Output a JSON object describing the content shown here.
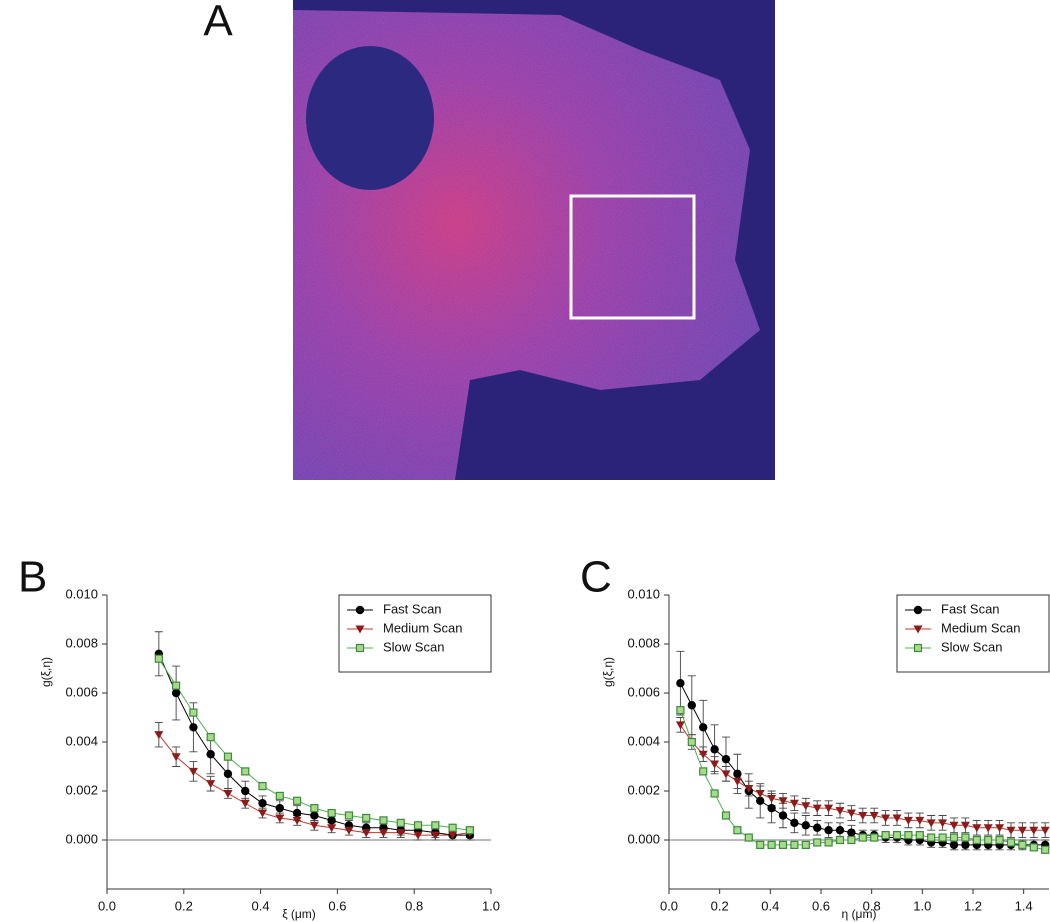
{
  "image_panel": {
    "label": "A"
  },
  "chart_data": [
    {
      "type": "line",
      "panel": "B",
      "x_label": "ξ (μm)",
      "y_label": "g(ξ,η)",
      "xlim": [
        0,
        1
      ],
      "xticks": [
        {
          "value": 0,
          "label": "0.0"
        },
        0.2,
        0.4,
        0.6,
        0.8,
        {
          "value": 1,
          "label": "1.0"
        }
      ],
      "ylim": [
        -0.002,
        0.01
      ],
      "yticks": [
        {
          "value": 0,
          "label": "0.000"
        },
        {
          "value": 0.002,
          "label": "0.002"
        },
        {
          "value": 0.004,
          "label": "0.004"
        },
        {
          "value": 0.006,
          "label": "0.006"
        },
        {
          "value": 0.008,
          "label": "0.008"
        },
        {
          "value": 0.01,
          "label": "0.010"
        }
      ],
      "legend": "upper right",
      "x": [
        0.135,
        0.18,
        0.225,
        0.27,
        0.315,
        0.36,
        0.405,
        0.45,
        0.495,
        0.54,
        0.585,
        0.63,
        0.675,
        0.72,
        0.765,
        0.81,
        0.855,
        0.9,
        0.945
      ],
      "series": [
        {
          "name": "Fast Scan",
          "color": "#000000",
          "marker": "circle",
          "values": [
            0.0076,
            0.006,
            0.0046,
            0.0035,
            0.0027,
            0.002,
            0.0015,
            0.0013,
            0.0011,
            0.001,
            0.0008,
            0.0006,
            0.0005,
            0.0005,
            0.0004,
            0.0004,
            0.0003,
            0.0002,
            0.0002
          ],
          "errors": [
            0.0009,
            0.0011,
            0.001,
            0.0008,
            0.0006,
            0.0004,
            0.0003,
            0.0003,
            0.0003,
            0.0002,
            0.0002,
            0.0002,
            0.0002,
            0.0002,
            0.0002,
            0.0002,
            0.0002,
            0.0002,
            0.0002
          ]
        },
        {
          "name": "Medium Scan",
          "color": "#c0392b",
          "marker": "triangle-down",
          "values": [
            0.0043,
            0.0034,
            0.0028,
            0.0023,
            0.0019,
            0.0015,
            0.0011,
            0.0009,
            0.0008,
            0.0006,
            0.0005,
            0.0004,
            0.0003,
            0.0003,
            0.0003,
            0.0002,
            0.0002,
            0.0002,
            0.0003
          ],
          "errors": [
            0.0005,
            0.0004,
            0.0004,
            0.0003,
            0.0002,
            0.0002,
            0.0002,
            0.0002,
            0.0002,
            0.0002,
            0.0002,
            0.0002,
            0.0002,
            0.0002,
            0.0002,
            0.0002,
            0.0002,
            0.0002,
            0.0002
          ]
        },
        {
          "name": "Slow Scan",
          "color": "#4caf50",
          "marker": "square",
          "values": [
            0.0074,
            0.0063,
            0.0052,
            0.0042,
            0.0034,
            0.0028,
            0.0022,
            0.0018,
            0.0016,
            0.0013,
            0.0011,
            0.001,
            0.0009,
            0.0008,
            0.0007,
            0.0006,
            0.0006,
            0.0005,
            0.0004
          ]
        }
      ]
    },
    {
      "type": "line",
      "panel": "C",
      "x_label": "η (μm)",
      "y_label": "g(ξ,η)",
      "xlim": [
        0,
        1.5
      ],
      "xticks": [
        {
          "value": 0,
          "label": "0.0"
        },
        0.2,
        0.4,
        0.6,
        0.8,
        {
          "value": 1,
          "label": "1.0"
        },
        1.2,
        1.4
      ],
      "ylim": [
        -0.002,
        0.01
      ],
      "yticks": [
        {
          "value": 0,
          "label": "0.000"
        },
        {
          "value": 0.002,
          "label": "0.002"
        },
        {
          "value": 0.004,
          "label": "0.004"
        },
        {
          "value": 0.006,
          "label": "0.006"
        },
        {
          "value": 0.008,
          "label": "0.008"
        },
        {
          "value": 0.01,
          "label": "0.010"
        }
      ],
      "legend": "upper right",
      "x": [
        0.045,
        0.09,
        0.135,
        0.18,
        0.225,
        0.27,
        0.315,
        0.36,
        0.405,
        0.45,
        0.495,
        0.54,
        0.585,
        0.63,
        0.675,
        0.72,
        0.765,
        0.81,
        0.855,
        0.9,
        0.945,
        0.99,
        1.035,
        1.08,
        1.125,
        1.17,
        1.215,
        1.26,
        1.305,
        1.35,
        1.395,
        1.44,
        1.485
      ],
      "series": [
        {
          "name": "Fast Scan",
          "color": "#000000",
          "marker": "circle",
          "values": [
            0.0064,
            0.0055,
            0.0046,
            0.0037,
            0.0033,
            0.0027,
            0.002,
            0.0016,
            0.0013,
            0.001,
            0.0007,
            0.0006,
            0.0005,
            0.0004,
            0.0004,
            0.0003,
            0.0002,
            0.0002,
            0.0001,
            0.0001,
            0,
            0,
            -0.0001,
            -0.0001,
            -0.0002,
            -0.0002,
            -0.0002,
            -0.0002,
            -0.0002,
            -0.0002,
            -0.0002,
            -0.0002,
            -0.0002
          ],
          "errors": [
            0.0013,
            0.0012,
            0.0011,
            0.001,
            0.0009,
            0.0008,
            0.0007,
            0.0007,
            0.0006,
            0.0005,
            0.0004,
            0.0004,
            0.0003,
            0.0003,
            0.0003,
            0.0003,
            0.0002,
            0.0002,
            0.0002,
            0.0002,
            0.0002,
            0.0002,
            0.0002,
            0.0002,
            0.0002,
            0.0002,
            0.0002,
            0.0002,
            0.0002,
            0.0002,
            0.0002,
            0.0002,
            0.0002
          ]
        },
        {
          "name": "Medium Scan",
          "color": "#c0392b",
          "marker": "triangle-down",
          "values": [
            0.0047,
            0.004,
            0.0035,
            0.0031,
            0.0027,
            0.0024,
            0.0021,
            0.0019,
            0.0017,
            0.0016,
            0.0015,
            0.0014,
            0.0013,
            0.0013,
            0.0012,
            0.0011,
            0.001,
            0.001,
            0.0009,
            0.0009,
            0.0008,
            0.0008,
            0.0007,
            0.0007,
            0.0006,
            0.0006,
            0.0005,
            0.0005,
            0.0005,
            0.0004,
            0.0004,
            0.0004,
            0.0004
          ],
          "errors": [
            0.0003,
            0.0003,
            0.0003,
            0.0003,
            0.0003,
            0.0003,
            0.0003,
            0.0003,
            0.0003,
            0.0003,
            0.0003,
            0.0003,
            0.0003,
            0.0003,
            0.0003,
            0.0003,
            0.0003,
            0.0003,
            0.0003,
            0.0003,
            0.0003,
            0.0003,
            0.0003,
            0.0003,
            0.0003,
            0.0003,
            0.0003,
            0.0003,
            0.0003,
            0.0003,
            0.0003,
            0.0003,
            0.0003
          ]
        },
        {
          "name": "Slow Scan",
          "color": "#4caf50",
          "marker": "square",
          "values": [
            0.0053,
            0.004,
            0.0028,
            0.0019,
            0.001,
            0.0004,
            0.0001,
            -0.0002,
            -0.0002,
            -0.0002,
            -0.0002,
            -0.0002,
            -0.0001,
            -0.0001,
            0,
            0,
            0.0001,
            0.0001,
            0.0002,
            0.0002,
            0.0002,
            0.0002,
            0.0001,
            0.0001,
            0.0001,
            0.0001,
            0,
            0,
            0,
            -0.0001,
            -0.0002,
            -0.0003,
            -0.0004
          ]
        }
      ]
    }
  ]
}
